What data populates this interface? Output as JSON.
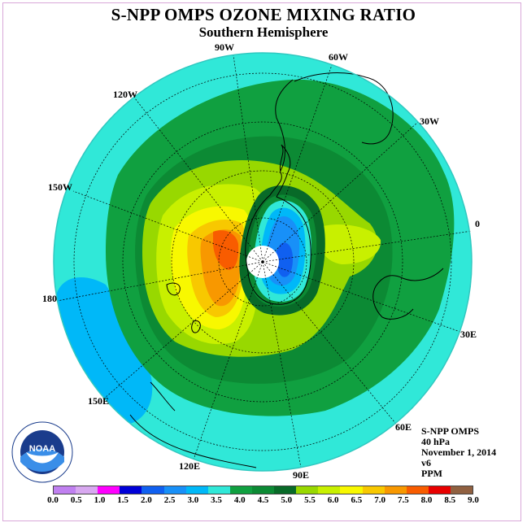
{
  "title": "S-NPP OMPS OZONE MIXING RATIO",
  "subtitle": "Southern Hemisphere",
  "longitude_labels": [
    "90W",
    "60W",
    "120W",
    "30W",
    "150W",
    "0",
    "180",
    "30E",
    "150E",
    "60E",
    "120E",
    "90E"
  ],
  "info": {
    "instrument": "S-NPP OMPS",
    "level": "40 hPa",
    "date": "November 1, 2014",
    "version": "v6",
    "units": "PPM"
  },
  "logo": {
    "text": "NOAA",
    "ring_text": "NATIONAL OCEANIC AND ATMOSPHERIC ADMINISTRATION · U.S. DEPARTMENT OF COMMERCE"
  },
  "colorbar": {
    "ticks": [
      "0.0",
      "0.5",
      "1.0",
      "1.5",
      "2.0",
      "2.5",
      "3.0",
      "3.5",
      "4.0",
      "4.5",
      "5.0",
      "5.5",
      "6.0",
      "6.5",
      "7.0",
      "7.5",
      "8.0",
      "8.5",
      "9.0"
    ],
    "colors": [
      "#c080f0",
      "#d8a8f0",
      "#ff00ff",
      "#0000d8",
      "#1060f0",
      "#1890f8",
      "#00b8f8",
      "#30e8d8",
      "#10a040",
      "#0c8a34",
      "#086a28",
      "#98d800",
      "#c8f000",
      "#f8f800",
      "#f8c800",
      "#f89800",
      "#f85c00",
      "#e80000",
      "#906040"
    ]
  },
  "colors": {
    "ocean_outer": "#30e8d8",
    "coast": "#000000",
    "grid": "#000000"
  }
}
